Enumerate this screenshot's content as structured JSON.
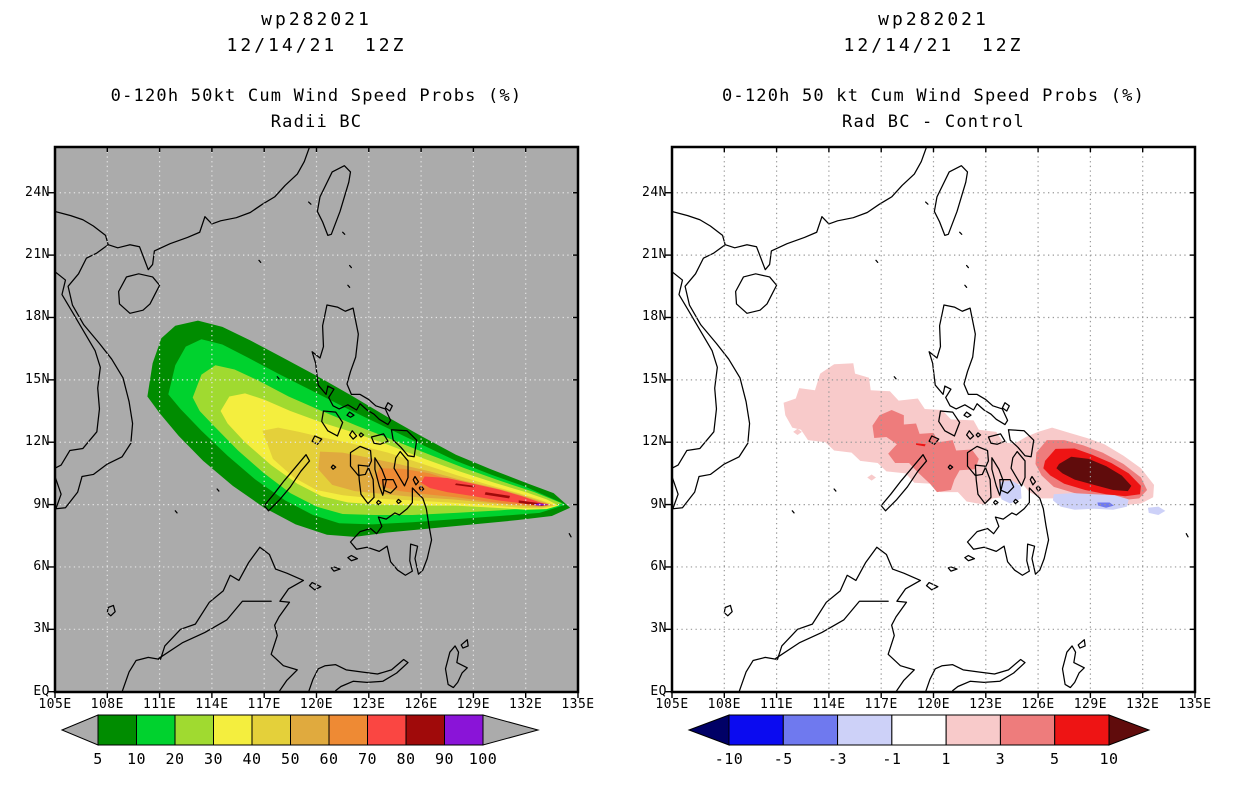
{
  "panels": [
    {
      "id": "left",
      "title1": "wp282021",
      "title2": "12/14/21  12Z",
      "title3": "0-120h 50kt Cum Wind Speed Probs (%)",
      "title4": "Radii BC",
      "map_bg": "#ababab",
      "grid_color": "#e4e4e4",
      "colorbar": {
        "labels": [
          "5",
          "10",
          "20",
          "30",
          "40",
          "50",
          "60",
          "70",
          "80",
          "90",
          "100"
        ],
        "colors": [
          "#008c00",
          "#00d22e",
          "#a0da30",
          "#f4ee3e",
          "#e4d03a",
          "#e0aa3e",
          "#ee8a34",
          "#fa4642",
          "#a00a0a",
          "#8a14d8"
        ],
        "end_left_color": "#ababab",
        "end_right_color": "#ababab"
      }
    },
    {
      "id": "right",
      "title1": "wp282021",
      "title2": "12/14/21  12Z",
      "title3": "0-120h 50 kt Cum Wind Speed Probs (%)",
      "title4": "Rad BC - Control",
      "map_bg": "#ffffff",
      "grid_color": "#999999",
      "colorbar": {
        "labels": [
          "-10",
          "-5",
          "-3",
          "-1",
          "1",
          "3",
          "5",
          "10"
        ],
        "colors": [
          "#0b0bf0",
          "#6f79ef",
          "#cdd1f8",
          "#ffffff",
          "#f8caca",
          "#ee7c7c",
          "#ee1414"
        ],
        "end_left_color": "#000066",
        "end_right_color": "#600c0c"
      }
    }
  ],
  "axes": {
    "x_labels": [
      "105E",
      "108E",
      "111E",
      "114E",
      "117E",
      "120E",
      "123E",
      "126E",
      "129E",
      "132E",
      "135E"
    ],
    "x_lons": [
      105,
      108,
      111,
      114,
      117,
      120,
      123,
      126,
      129,
      132,
      135
    ],
    "y_labels": [
      "EQ",
      "3N",
      "6N",
      "9N",
      "12N",
      "15N",
      "18N",
      "21N",
      "24N"
    ],
    "y_lats": [
      0,
      3,
      6,
      9,
      12,
      15,
      18,
      21,
      24
    ]
  },
  "chart_data": [
    {
      "type": "filled_contour_map",
      "title": "wp282021 12/14/21 12Z — 0-120h 50kt Cum Wind Speed Probs (%) — Radii BC",
      "x_axis": {
        "label_units": "degrees east",
        "range": [
          105,
          135
        ],
        "ticks": [
          105,
          108,
          111,
          114,
          117,
          120,
          123,
          126,
          129,
          132,
          135
        ]
      },
      "y_axis": {
        "label_units": "degrees north",
        "range": [
          0,
          26
        ],
        "ticks": [
          0,
          3,
          6,
          9,
          12,
          15,
          18,
          21,
          24
        ]
      },
      "grid": "dotted 3-degree graticule",
      "legend_position": "horizontal colorbar below map",
      "contour_levels_percent": [
        5,
        10,
        20,
        30,
        40,
        50,
        60,
        70,
        80,
        90,
        100
      ],
      "level_colors": [
        "#008c00",
        "#00d22e",
        "#a0da30",
        "#f4ee3e",
        "#e4d03a",
        "#e0aa3e",
        "#ee8a34",
        "#fa4642",
        "#a00a0a",
        "#8a14d8"
      ],
      "description": "Comet-shaped cumulative wind-probability swath pointed at ~134.5E 9N, widening west-northwest across the central Philippines into the South China Sea.",
      "features": [
        {
          "level_percent": 5,
          "extent_lon_E": [
            110.3,
            134.6
          ],
          "extent_lat_N": [
            7.4,
            17.9
          ]
        },
        {
          "level_percent": 10,
          "extent_lon_E": [
            111.5,
            134.3
          ],
          "extent_lat_N": [
            8.0,
            17.0
          ]
        },
        {
          "level_percent": 20,
          "extent_lon_E": [
            112.9,
            134.1
          ],
          "extent_lat_N": [
            8.5,
            15.7
          ]
        },
        {
          "level_percent": 30,
          "extent_lon_E": [
            114.5,
            133.9
          ],
          "extent_lat_N": [
            8.8,
            14.4
          ]
        },
        {
          "level_percent": 40,
          "extent_lon_E": [
            116.9,
            133.7
          ],
          "extent_lat_N": [
            8.8,
            12.7
          ]
        },
        {
          "level_percent": 50,
          "extent_lon_E": [
            120.1,
            133.6
          ],
          "extent_lat_N": [
            8.9,
            11.6
          ]
        },
        {
          "level_percent": 60,
          "extent_lon_E": [
            123.4,
            133.5
          ],
          "extent_lat_N": [
            8.9,
            10.8
          ]
        },
        {
          "level_percent": 70,
          "extent_lon_E": [
            126.0,
            133.4
          ],
          "extent_lat_N": [
            9.0,
            10.4
          ]
        },
        {
          "level_percent": 80,
          "extent_lon_E": [
            128.0,
            133.3
          ],
          "extent_lat_N": [
            8.9,
            10.0
          ],
          "note": "thin streaks"
        },
        {
          "level_percent": 90,
          "extent_lon_E": [
            132.5,
            133.4
          ],
          "extent_lat_N": [
            8.95,
            9.06
          ],
          "note": "tiny purple streak near swath tip"
        }
      ]
    },
    {
      "type": "filled_contour_difference_map",
      "title": "wp282021 12/14/21 12Z — 0-120h 50 kt Cum Wind Speed Probs (%) — Rad BC - Control",
      "x_axis": {
        "label_units": "degrees east",
        "range": [
          105,
          135
        ],
        "ticks": [
          105,
          108,
          111,
          114,
          117,
          120,
          123,
          126,
          129,
          132,
          135
        ]
      },
      "y_axis": {
        "label_units": "degrees north",
        "range": [
          0,
          26
        ],
        "ticks": [
          0,
          3,
          6,
          9,
          12,
          15,
          18,
          21,
          24
        ]
      },
      "grid": "dotted 3-degree graticule",
      "legend_position": "horizontal colorbar below map",
      "contour_levels_percent": [
        -10,
        -5,
        -3,
        -1,
        1,
        3,
        5,
        10
      ],
      "level_colors": [
        "#000066",
        "#0b0bf0",
        "#6f79ef",
        "#cdd1f8",
        "#ffffff",
        "#f8caca",
        "#ee7c7c",
        "#ee1414",
        "#600c0c"
      ],
      "features": [
        {
          "sign": "positive",
          "level_percent": 1,
          "extent_lon_E": [
            111.4,
            125.6
          ],
          "extent_lat_N": [
            9.0,
            15.8
          ],
          "note": "large blotchy light-pink area over the central Philippines and South China Sea"
        },
        {
          "sign": "positive",
          "level_percent": 1,
          "extent_lon_E": [
            124.3,
            132.7
          ],
          "extent_lat_N": [
            8.9,
            12.7
          ],
          "note": "eastern lobe surrounding maximum"
        },
        {
          "sign": "positive",
          "level_percent": 3,
          "extent_lon_E": [
            116.5,
            122.6
          ],
          "extent_lat_N": [
            9.6,
            13.6
          ]
        },
        {
          "sign": "positive",
          "level_percent": 3,
          "extent_lon_E": [
            125.8,
            132.3
          ],
          "extent_lat_N": [
            9.2,
            12.1
          ]
        },
        {
          "sign": "positive",
          "level_percent": 5,
          "extent_lon_E": [
            126.3,
            131.9
          ],
          "extent_lat_N": [
            9.4,
            11.7
          ]
        },
        {
          "sign": "positive",
          "level_percent": 10,
          "extent_lon_E": [
            127.1,
            131.4
          ],
          "extent_lat_N": [
            9.6,
            11.3
          ],
          "note": "dark maroon core east of Mindanao"
        },
        {
          "sign": "negative",
          "level_percent": -1,
          "extent_lon_E": [
            123.7,
            125.1
          ],
          "extent_lat_N": [
            9.0,
            10.2
          ]
        },
        {
          "sign": "negative",
          "level_percent": -1,
          "extent_lon_E": [
            126.8,
            131.2
          ],
          "extent_lat_N": [
            8.7,
            9.6
          ]
        },
        {
          "sign": "negative",
          "level_percent": -1,
          "extent_lon_E": [
            132.3,
            133.3
          ],
          "extent_lat_N": [
            8.5,
            8.9
          ]
        },
        {
          "sign": "negative",
          "level_percent": -3,
          "extent_lon_E": [
            129.4,
            130.4
          ],
          "extent_lat_N": [
            8.8,
            9.1
          ]
        },
        {
          "sign": "marker",
          "note": "small red dash near 119.3E 11.9N"
        }
      ]
    }
  ]
}
